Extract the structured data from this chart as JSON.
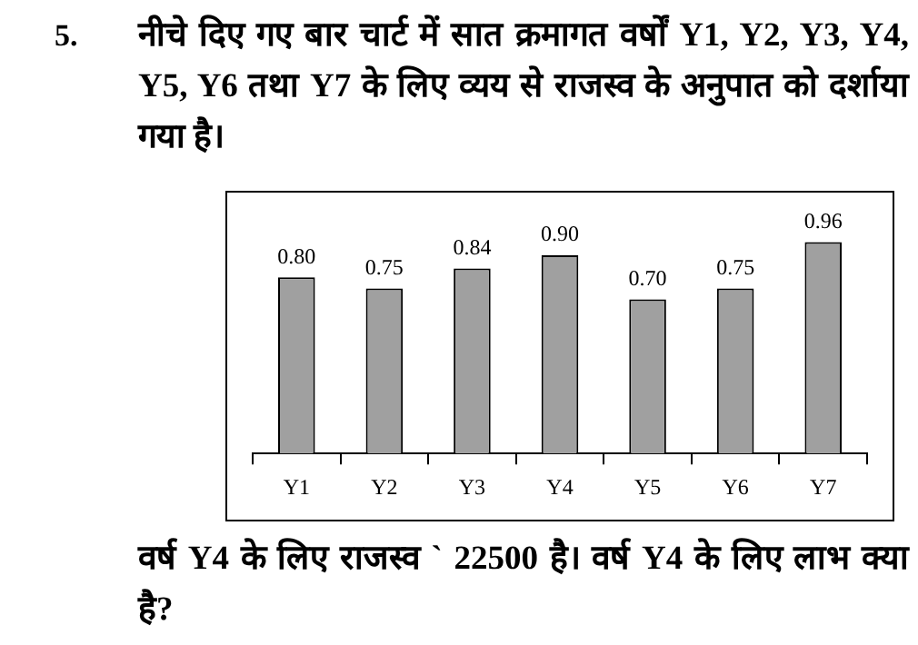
{
  "chart_data": {
    "type": "bar",
    "title": "नीचे दिए गए बार चार्ट में सात क्रमागत वर्षों Y1, Y2, Y3, Y4, Y5, Y6 तथा Y7 के लिए व्यय से राजस्व के अनुपात को दर्शाया गया है।",
    "annotations": [
      "5.",
      "वर्ष Y4 के लिए राजस्व ` 22500 है। वर्ष Y4 के लिए लाभ क्या है?"
    ],
    "categories": [
      "Y1",
      "Y2",
      "Y3",
      "Y4",
      "Y5",
      "Y6",
      "Y7"
    ],
    "values": [
      0.8,
      0.75,
      0.84,
      0.9,
      0.7,
      0.75,
      0.96
    ],
    "value_labels": [
      "0.80",
      "0.75",
      "0.84",
      "0.90",
      "0.70",
      "0.75",
      "0.96"
    ],
    "color": "#a0a0a0",
    "grid": false,
    "legend": false
  }
}
